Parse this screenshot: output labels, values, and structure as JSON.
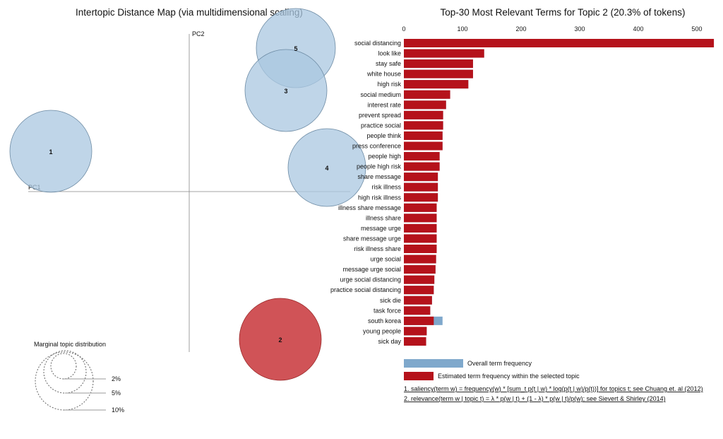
{
  "chart_data": [
    {
      "type": "scatter",
      "title": "Intertopic Distance Map (via multidimensional scaling)",
      "xlabel": "PC1",
      "ylabel": "PC2",
      "topics": [
        {
          "id": "1",
          "selected": false
        },
        {
          "id": "2",
          "selected": true
        },
        {
          "id": "3",
          "selected": false
        },
        {
          "id": "4",
          "selected": false
        },
        {
          "id": "5",
          "selected": false
        }
      ],
      "marginal_legend": {
        "title": "Marginal topic distribution",
        "labels": [
          "2%",
          "5%",
          "10%"
        ]
      }
    },
    {
      "type": "bar",
      "orientation": "horizontal",
      "title": "Top-30 Most Relevant Terms for Topic 2 (20.3% of tokens)",
      "xlim": [
        0,
        530
      ],
      "xticks": [
        "0",
        "100",
        "200",
        "300",
        "400",
        "500"
      ],
      "categories": [
        "social distancing",
        "look like",
        "stay safe",
        "white house",
        "high risk",
        "social medium",
        "interest rate",
        "prevent spread",
        "practice social",
        "people think",
        "press conference",
        "people high",
        "people high risk",
        "share message",
        "risk illness",
        "high risk illness",
        "illness share message",
        "illness share",
        "message urge",
        "share message urge",
        "risk illness share",
        "urge social",
        "message urge social",
        "urge social distancing",
        "practice social distancing",
        "sick die",
        "task force",
        "south korea",
        "young people",
        "sick day"
      ],
      "series": [
        {
          "name": "Overall term frequency",
          "color": "#7fa8cc",
          "values": [
            529,
            137,
            118,
            118,
            110,
            79,
            72,
            67,
            67,
            66,
            66,
            61,
            61,
            58,
            58,
            58,
            56,
            56,
            56,
            56,
            56,
            55,
            54,
            52,
            51,
            48,
            45,
            66,
            39,
            38
          ]
        },
        {
          "name": "Estimated term frequency within the selected topic",
          "color": "#b5121b",
          "values": [
            529,
            137,
            118,
            118,
            110,
            79,
            72,
            67,
            67,
            66,
            66,
            61,
            61,
            58,
            58,
            58,
            56,
            56,
            56,
            56,
            56,
            55,
            54,
            52,
            51,
            48,
            45,
            51,
            39,
            38
          ]
        }
      ],
      "footnotes": [
        "1. saliency(term w) = frequency(w) * [sum_t p(t | w) * log(p(t | w)/p(t))] for topics t; see Chuang et. al (2012)",
        "2. relevance(term w | topic t) = λ * p(w | t) + (1 - λ) * p(w | t)/p(w); see Sievert & Shirley (2014)"
      ]
    }
  ]
}
